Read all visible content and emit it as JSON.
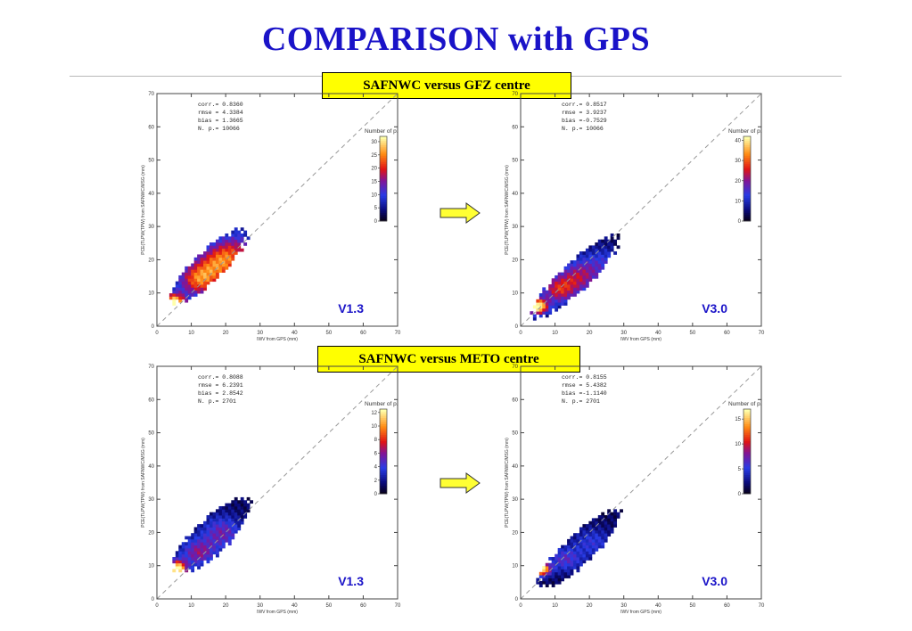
{
  "title": "COMPARISON with GPS",
  "banners": [
    "SAFNWC versus GFZ centre",
    "SAFNWC versus METO centre"
  ],
  "arrow_color": "#ffff33",
  "colorbar_title": "Number of p.",
  "chart_data": [
    {
      "type": "heatmap",
      "version_label": "V1.3",
      "xlabel": "IWV from GPS (mm)",
      "ylabel": "PCE(TLPW(TPW) from SAFNWC/MSG (mm)",
      "xlim": [
        0,
        70
      ],
      "ylim": [
        0,
        70
      ],
      "xticks": [
        0,
        10,
        20,
        30,
        40,
        50,
        60,
        70
      ],
      "yticks": [
        0,
        10,
        20,
        30,
        40,
        50,
        60,
        70
      ],
      "stats": [
        "corr.= 0.8360",
        "rmse = 4.3384",
        "bias = 1.3665",
        "N. p.=   10066"
      ],
      "colorbar_ticks": [
        "30",
        "25",
        "20",
        "15",
        "10",
        "5",
        "0"
      ],
      "colorbar_max": 32,
      "density_blobs": [
        {
          "x": 5,
          "y": 7,
          "sx": 2.2,
          "sy": 2.0,
          "w": 1.0
        },
        {
          "x": 12,
          "y": 14,
          "sx": 4,
          "sy": 3.5,
          "w": 0.62
        },
        {
          "x": 18,
          "y": 19,
          "sx": 4.5,
          "sy": 4,
          "w": 0.58
        },
        {
          "x": 23,
          "y": 23,
          "sx": 4,
          "sy": 4,
          "w": 0.35
        }
      ],
      "extent": {
        "cx": 15,
        "cy": 18,
        "along": 15,
        "across": 4.3
      }
    },
    {
      "type": "heatmap",
      "version_label": "V3.0",
      "xlabel": "IWV from GPS (mm)",
      "ylabel": "PCE(TLPW(TPW) from SAFNWC/MSG (mm)",
      "xlim": [
        0,
        70
      ],
      "ylim": [
        0,
        70
      ],
      "xticks": [
        0,
        10,
        20,
        30,
        40,
        50,
        60,
        70
      ],
      "yticks": [
        0,
        10,
        20,
        30,
        40,
        50,
        60,
        70
      ],
      "stats": [
        "corr.= 0.8517",
        "rmse = 3.9237",
        "bias =-0.7529",
        "N. p.=   10066"
      ],
      "colorbar_ticks": [
        "40",
        "30",
        "20",
        "10",
        "0"
      ],
      "colorbar_max": 42,
      "density_blobs": [
        {
          "x": 5,
          "y": 6,
          "sx": 2,
          "sy": 1.6,
          "w": 1.0
        },
        {
          "x": 11,
          "y": 11,
          "sx": 3.5,
          "sy": 3,
          "w": 0.5
        },
        {
          "x": 17,
          "y": 15,
          "sx": 4,
          "sy": 3.5,
          "w": 0.42
        },
        {
          "x": 24,
          "y": 19,
          "sx": 4,
          "sy": 3.5,
          "w": 0.22
        }
      ],
      "extent": {
        "cx": 16,
        "cy": 15,
        "along": 17,
        "across": 4.2
      }
    },
    {
      "type": "heatmap",
      "version_label": "V1.3",
      "xlabel": "IWV from GPS (mm)",
      "ylabel": "PCE(TLPW(TPW) from SAFNWC/MSG (mm)",
      "xlim": [
        0,
        70
      ],
      "ylim": [
        0,
        70
      ],
      "xticks": [
        0,
        10,
        20,
        30,
        40,
        50,
        60,
        70
      ],
      "yticks": [
        0,
        10,
        20,
        30,
        40,
        50,
        60,
        70
      ],
      "stats": [
        "corr.= 0.8088",
        "rmse = 6.2391",
        "bias = 2.8542",
        "N. p.=    2701"
      ],
      "colorbar_ticks": [
        "12",
        "10",
        "8",
        "6",
        "4",
        "2",
        "0"
      ],
      "colorbar_max": 12.5,
      "density_blobs": [
        {
          "x": 6,
          "y": 9,
          "sx": 1.8,
          "sy": 1.8,
          "w": 1.0
        },
        {
          "x": 12,
          "y": 14,
          "sx": 3.5,
          "sy": 3,
          "w": 0.4
        },
        {
          "x": 19,
          "y": 20,
          "sx": 4,
          "sy": 3.5,
          "w": 0.35
        }
      ],
      "extent": {
        "cx": 16,
        "cy": 19,
        "along": 15,
        "across": 5
      }
    },
    {
      "type": "heatmap",
      "version_label": "V3.0",
      "xlabel": "IWV from GPS (mm)",
      "ylabel": "PCE(TLPW(TPW) from SAFNWC/MSG (mm)",
      "xlim": [
        0,
        70
      ],
      "ylim": [
        0,
        70
      ],
      "xticks": [
        0,
        10,
        20,
        30,
        40,
        50,
        60,
        70
      ],
      "yticks": [
        0,
        10,
        20,
        30,
        40,
        50,
        60,
        70
      ],
      "stats": [
        "corr.= 0.8155",
        "rmse = 5.4382",
        "bias =-1.1140",
        "N. p.=    2701"
      ],
      "colorbar_ticks": [
        "15",
        "10",
        "5",
        "0"
      ],
      "colorbar_max": 17,
      "density_blobs": [
        {
          "x": 6,
          "y": 9,
          "sx": 1.8,
          "sy": 1.3,
          "w": 1.0
        },
        {
          "x": 13,
          "y": 12,
          "sx": 3.5,
          "sy": 2.5,
          "w": 0.3
        },
        {
          "x": 21,
          "y": 17,
          "sx": 4,
          "sy": 3,
          "w": 0.22
        }
      ],
      "extent": {
        "cx": 17,
        "cy": 15,
        "along": 16,
        "across": 4.3
      }
    }
  ]
}
